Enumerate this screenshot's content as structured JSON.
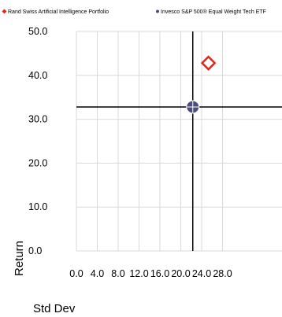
{
  "chart_data": {
    "type": "scatter",
    "xlabel": "Std Dev",
    "ylabel": "Return",
    "xlim": [
      0.0,
      28.0
    ],
    "ylim": [
      0.0,
      50.0
    ],
    "x_ticks": [
      "0.0",
      "4.0",
      "8.0",
      "12.0",
      "16.0",
      "20.0",
      "24.0",
      "28.0"
    ],
    "y_ticks": [
      "0.0",
      "10.0",
      "20.0",
      "30.0",
      "40.0",
      "50.0"
    ],
    "grid": true,
    "legend_position": "top",
    "crosshair": {
      "x": 22.3,
      "y": 32.8
    },
    "series": [
      {
        "name": "Rand Swiss Artificial Intelligence Portfolio",
        "marker": "diamond",
        "color": "#e8231a",
        "points": [
          [
            25.3,
            42.8
          ]
        ]
      },
      {
        "name": "Invesco S&P 500® Equal Weight Tech ETF",
        "marker": "circle",
        "color": "#4a4e7d",
        "points": [
          [
            22.3,
            32.8
          ]
        ]
      }
    ]
  }
}
